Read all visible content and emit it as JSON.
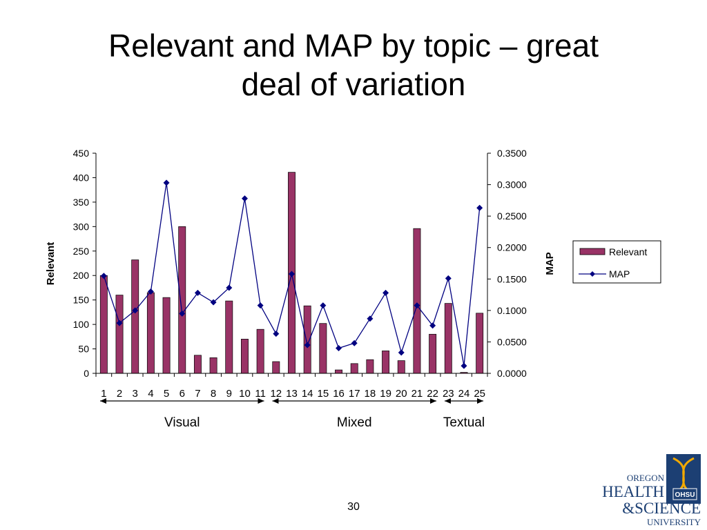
{
  "slide": {
    "title_line1": "Relevant and MAP by topic – great",
    "title_line2": "deal of variation",
    "page_number": "30"
  },
  "groups": [
    {
      "label": "Visual",
      "from_topic": 1,
      "to_topic": 11
    },
    {
      "label": "Mixed",
      "from_topic": 12,
      "to_topic": 22
    },
    {
      "label": "Textual",
      "from_topic": 23,
      "to_topic": 25
    }
  ],
  "logo": {
    "line1": "OREGON",
    "line2": "HEALTH",
    "line3": "&SCIENCE",
    "line4": "UNIVERSITY",
    "badge": "OHSU"
  },
  "colors": {
    "bar": "#993366",
    "line": "#000080",
    "logo_blue": "#1c3f73",
    "logo_gold": "#f2a900"
  },
  "chart_data": {
    "type": "bar",
    "categories": [
      "1",
      "2",
      "3",
      "4",
      "5",
      "6",
      "7",
      "8",
      "9",
      "10",
      "11",
      "12",
      "13",
      "14",
      "15",
      "16",
      "17",
      "18",
      "19",
      "20",
      "21",
      "22",
      "23",
      "24",
      "25"
    ],
    "ylabel": "Relevant",
    "y2label": "MAP",
    "ylim": [
      0,
      450
    ],
    "y2lim": [
      0,
      0.35
    ],
    "yticks": [
      "0",
      "50",
      "100",
      "150",
      "200",
      "250",
      "300",
      "350",
      "400",
      "450"
    ],
    "y2ticks": [
      "0.0000",
      "0.0500",
      "0.1000",
      "0.1500",
      "0.2000",
      "0.2500",
      "0.3000",
      "0.3500"
    ],
    "legend_position": "right",
    "grid": false,
    "series": [
      {
        "name": "Relevant",
        "type": "bar",
        "axis": "left",
        "values": [
          200,
          160,
          232,
          165,
          155,
          300,
          37,
          32,
          148,
          70,
          90,
          24,
          411,
          138,
          102,
          7,
          20,
          28,
          46,
          26,
          296,
          80,
          143,
          2,
          123
        ]
      },
      {
        "name": "MAP",
        "type": "line",
        "axis": "right",
        "values": [
          0.155,
          0.08,
          0.1,
          0.13,
          0.303,
          0.095,
          0.128,
          0.113,
          0.136,
          0.278,
          0.108,
          0.063,
          0.158,
          0.045,
          0.108,
          0.04,
          0.048,
          0.087,
          0.128,
          0.033,
          0.108,
          0.076,
          0.151,
          0.012,
          0.263
        ]
      }
    ]
  }
}
